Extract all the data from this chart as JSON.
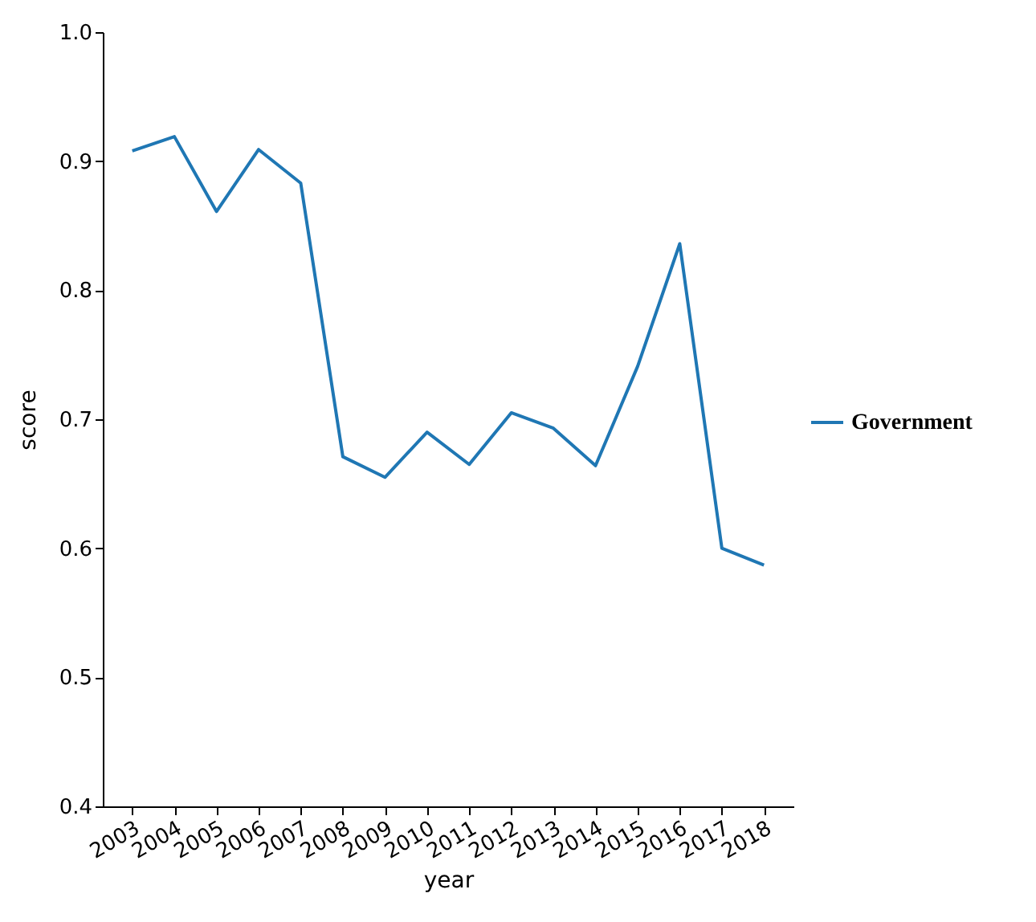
{
  "chart_data": {
    "type": "line",
    "xlabel": "year",
    "ylabel": "score",
    "categories": [
      "2003",
      "2004",
      "2005",
      "2006",
      "2007",
      "2008",
      "2009",
      "2010",
      "2011",
      "2012",
      "2013",
      "2014",
      "2015",
      "2016",
      "2017",
      "2018"
    ],
    "series": [
      {
        "name": "Government",
        "color": "#1f77b4",
        "values": [
          0.908,
          0.919,
          0.861,
          0.909,
          0.883,
          0.671,
          0.655,
          0.69,
          0.665,
          0.705,
          0.693,
          0.664,
          0.741,
          0.836,
          0.6,
          0.587
        ]
      }
    ],
    "ylim": [
      0.4,
      1.0
    ],
    "yticks": [
      0.4,
      0.5,
      0.6,
      0.7,
      0.8,
      0.9,
      {
        "value": 1.0,
        "label": "1.0"
      }
    ],
    "legend": "right",
    "grid": false,
    "marker": "none",
    "line_style": "solid"
  }
}
